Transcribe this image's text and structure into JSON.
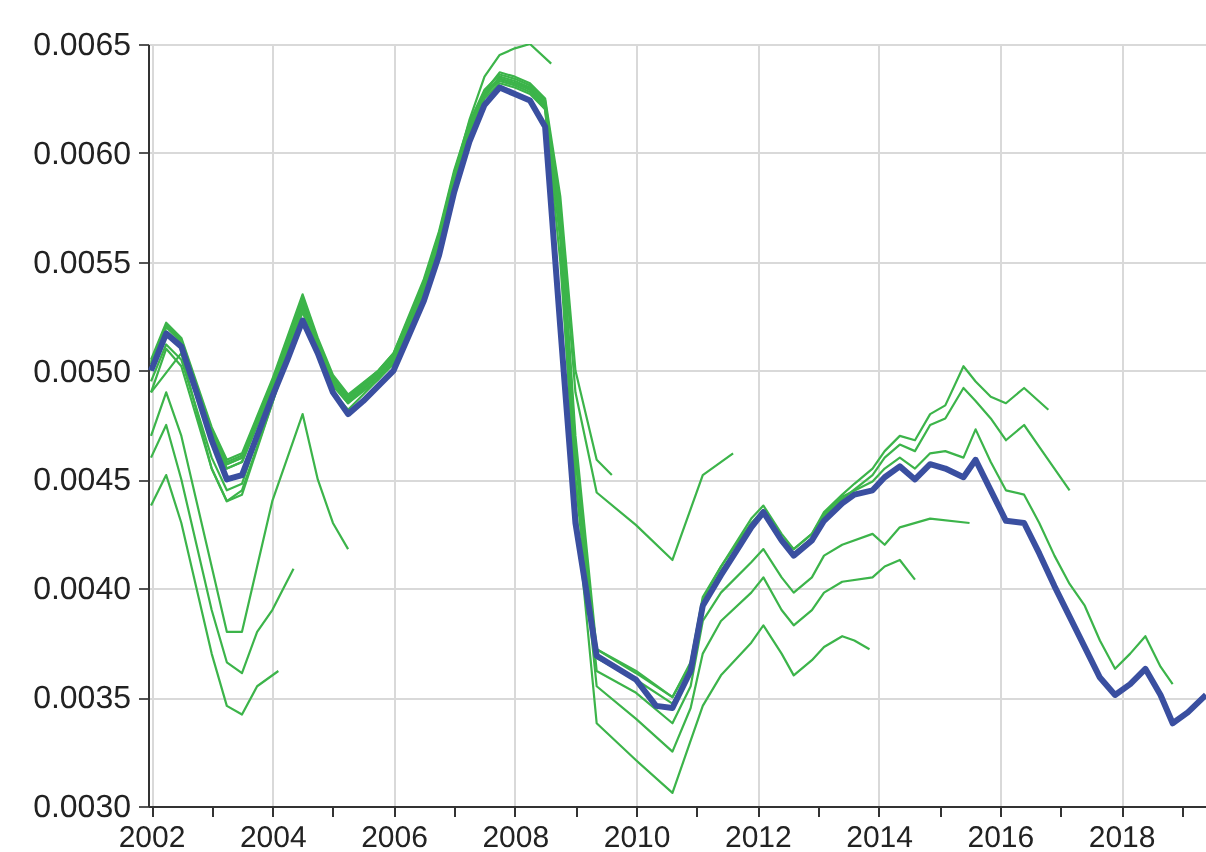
{
  "chart_data": {
    "type": "line",
    "xlim": [
      2001.95,
      2019.4
    ],
    "ylim": [
      0.003,
      0.0065
    ],
    "xticks": [
      2002,
      {
        "value": 2003,
        "label": null
      },
      2004,
      {
        "value": 2005,
        "label": null
      },
      2006,
      {
        "value": 2007,
        "label": null
      },
      2008,
      {
        "value": 2009,
        "label": null
      },
      2010,
      {
        "value": 2011,
        "label": null
      },
      2012,
      {
        "value": 2013,
        "label": null
      },
      2014,
      {
        "value": 2015,
        "label": null
      },
      2016,
      {
        "value": 2017,
        "label": null
      },
      2018,
      {
        "value": 2019,
        "label": null
      }
    ],
    "yticks": [
      {
        "value": 0.003,
        "label": "0.0030"
      },
      {
        "value": 0.0035,
        "label": "0.0035"
      },
      {
        "value": 0.004,
        "label": "0.0040"
      },
      {
        "value": 0.0045,
        "label": "0.0045"
      },
      {
        "value": 0.005,
        "label": "0.0050"
      },
      {
        "value": 0.0055,
        "label": "0.0055"
      },
      {
        "value": 0.006,
        "label": "0.0060"
      },
      {
        "value": 0.0065,
        "label": "0.0065"
      }
    ],
    "grid": true,
    "marker": "none",
    "line_style": "solid",
    "series": [
      {
        "color": "#3cb44a",
        "x": [
          2002,
          2002.25,
          2002.5,
          2002.75,
          2003,
          2003.25,
          2003.5,
          2003.75,
          2004.1
        ],
        "values": [
          0.00438,
          0.00452,
          0.0043,
          0.004,
          0.0037,
          0.00346,
          0.00342,
          0.00355,
          0.00362
        ]
      },
      {
        "color": "#3cb44a",
        "x": [
          2002,
          2002.25,
          2002.5,
          2002.75,
          2003,
          2003.25,
          2003.5,
          2003.75,
          2004,
          2004.35
        ],
        "values": [
          0.0046,
          0.00475,
          0.0045,
          0.0042,
          0.0039,
          0.00366,
          0.00361,
          0.0038,
          0.0039,
          0.00409
        ]
      },
      {
        "color": "#3cb44a",
        "x": [
          2002,
          2002.25,
          2002.5,
          2002.75,
          2003,
          2003.25,
          2003.5,
          2003.75,
          2004,
          2004.25,
          2004.5,
          2004.75,
          2005,
          2005.25
        ],
        "values": [
          0.0047,
          0.0049,
          0.0047,
          0.0044,
          0.0041,
          0.0038,
          0.0038,
          0.0041,
          0.0044,
          0.0046,
          0.0048,
          0.0045,
          0.0043,
          0.00418
        ]
      },
      {
        "color": "#3cb44a",
        "x": [
          2002,
          2002.5,
          2003,
          2003.25,
          2003.5,
          2004,
          2004.5,
          2004.75,
          2005,
          2005.25,
          2005.75,
          2006,
          2006.5,
          2006.75,
          2007,
          2007.25,
          2007.5,
          2007.75,
          2008,
          2008.25,
          2008.6
        ],
        "values": [
          0.0049,
          0.00508,
          0.00455,
          0.0044,
          0.00445,
          0.00485,
          0.0053,
          0.00512,
          0.00495,
          0.00488,
          0.005,
          0.00508,
          0.0054,
          0.0056,
          0.0059,
          0.00615,
          0.00635,
          0.00645,
          0.00648,
          0.0065,
          0.00641
        ]
      },
      {
        "color": "#3cb44a",
        "x": [
          2002,
          2002.25,
          2002.5,
          2003,
          2003.25,
          2003.5,
          2004,
          2004.5,
          2004.75,
          2005,
          2005.25,
          2005.75,
          2006,
          2006.5,
          2006.75,
          2007,
          2007.25,
          2007.5,
          2007.75,
          2008,
          2008.25,
          2008.5,
          2008.75,
          2009,
          2009.35,
          2009.6
        ],
        "values": [
          0.00495,
          0.00512,
          0.00505,
          0.0046,
          0.00445,
          0.00448,
          0.0049,
          0.0053,
          0.0051,
          0.00493,
          0.00485,
          0.00498,
          0.00505,
          0.00537,
          0.00557,
          0.00585,
          0.0061,
          0.00628,
          0.00637,
          0.00635,
          0.00632,
          0.00625,
          0.0058,
          0.005,
          0.00459,
          0.00452
        ]
      },
      {
        "color": "#3cb44a",
        "x": [
          2002,
          2002.25,
          2002.5,
          2003,
          2003.25,
          2003.5,
          2004,
          2004.5,
          2004.75,
          2005,
          2005.25,
          2005.75,
          2006,
          2006.5,
          2006.75,
          2007,
          2007.25,
          2007.5,
          2007.75,
          2008,
          2008.25,
          2008.5,
          2008.75,
          2009,
          2009.35,
          2010,
          2010.6,
          2011.1,
          2011.6
        ],
        "values": [
          0.0049,
          0.0051,
          0.00502,
          0.00455,
          0.0044,
          0.00443,
          0.00485,
          0.00527,
          0.00508,
          0.0049,
          0.00482,
          0.00496,
          0.00503,
          0.00535,
          0.00555,
          0.00583,
          0.00608,
          0.00626,
          0.00635,
          0.00633,
          0.0063,
          0.00622,
          0.00575,
          0.0049,
          0.00444,
          0.00429,
          0.00413,
          0.00452,
          0.00462
        ]
      },
      {
        "color": "#3cb44a",
        "x": [
          2002,
          2002.25,
          2002.5,
          2003,
          2003.25,
          2003.5,
          2004,
          2004.5,
          2004.75,
          2005,
          2005.25,
          2005.75,
          2006,
          2006.5,
          2006.75,
          2007,
          2007.25,
          2007.5,
          2007.75,
          2008,
          2008.25,
          2008.5,
          2008.75,
          2009,
          2009.35,
          2010,
          2010.6,
          2010.9,
          2011.1,
          2011.4,
          2011.9,
          2012.1,
          2012.4,
          2012.6,
          2012.9,
          2013.1,
          2013.4,
          2013.6,
          2013.85
        ],
        "values": [
          0.005,
          0.00518,
          0.00512,
          0.0047,
          0.00455,
          0.00458,
          0.00492,
          0.0053,
          0.00512,
          0.00495,
          0.00486,
          0.00497,
          0.00505,
          0.00538,
          0.0056,
          0.00588,
          0.0061,
          0.00625,
          0.00632,
          0.0063,
          0.00627,
          0.0062,
          0.0056,
          0.0044,
          0.00338,
          0.00321,
          0.00306,
          0.0033,
          0.00346,
          0.0036,
          0.00375,
          0.00383,
          0.0037,
          0.0036,
          0.00367,
          0.00373,
          0.00378,
          0.00376,
          0.00372
        ]
      },
      {
        "color": "#3cb44a",
        "x": [
          2002,
          2002.25,
          2002.5,
          2003,
          2003.25,
          2003.5,
          2004,
          2004.5,
          2004.75,
          2005,
          2005.25,
          2005.75,
          2006,
          2006.5,
          2006.75,
          2007,
          2007.25,
          2007.5,
          2007.75,
          2008,
          2008.25,
          2008.5,
          2008.75,
          2009,
          2009.35,
          2010,
          2010.6,
          2010.9,
          2011.1,
          2011.4,
          2011.9,
          2012.1,
          2012.4,
          2012.6,
          2012.9,
          2013.1,
          2013.4,
          2013.9,
          2014.1,
          2014.35,
          2014.6
        ],
        "values": [
          0.00502,
          0.0052,
          0.00513,
          0.00472,
          0.00457,
          0.0046,
          0.00494,
          0.00532,
          0.00513,
          0.00496,
          0.00487,
          0.00498,
          0.00506,
          0.0054,
          0.00562,
          0.0059,
          0.00612,
          0.00627,
          0.00633,
          0.00631,
          0.00628,
          0.00621,
          0.00565,
          0.0045,
          0.00355,
          0.0034,
          0.00325,
          0.00345,
          0.0037,
          0.00385,
          0.00398,
          0.00405,
          0.0039,
          0.00383,
          0.0039,
          0.00398,
          0.00403,
          0.00405,
          0.0041,
          0.00413,
          0.00404
        ]
      },
      {
        "color": "#3cb44a",
        "x": [
          2002,
          2002.25,
          2002.5,
          2003,
          2003.25,
          2003.5,
          2004,
          2004.5,
          2004.75,
          2005,
          2005.25,
          2005.75,
          2006,
          2006.5,
          2006.75,
          2007,
          2007.25,
          2007.5,
          2007.75,
          2008,
          2008.25,
          2008.5,
          2008.75,
          2009,
          2009.35,
          2010,
          2010.6,
          2010.9,
          2011.1,
          2011.4,
          2011.9,
          2012.1,
          2012.4,
          2012.6,
          2012.9,
          2013.1,
          2013.4,
          2013.9,
          2014.1,
          2014.35,
          2014.85,
          2015.5
        ],
        "values": [
          0.00503,
          0.00521,
          0.00514,
          0.00473,
          0.00458,
          0.00461,
          0.00495,
          0.00533,
          0.00514,
          0.00497,
          0.00488,
          0.00499,
          0.00507,
          0.00541,
          0.00563,
          0.00591,
          0.00613,
          0.00628,
          0.00634,
          0.00632,
          0.00629,
          0.00622,
          0.0057,
          0.0046,
          0.00362,
          0.00352,
          0.00338,
          0.00355,
          0.00385,
          0.00398,
          0.00412,
          0.00418,
          0.00405,
          0.00398,
          0.00405,
          0.00415,
          0.0042,
          0.00425,
          0.0042,
          0.00428,
          0.00432,
          0.0043
        ]
      },
      {
        "color": "#3cb44a",
        "x": [
          2002,
          2002.25,
          2002.5,
          2003,
          2003.25,
          2003.5,
          2004,
          2004.5,
          2004.75,
          2005,
          2005.25,
          2005.75,
          2006,
          2006.5,
          2006.75,
          2007,
          2007.25,
          2007.5,
          2007.75,
          2008,
          2008.25,
          2008.5,
          2008.75,
          2009,
          2009.35,
          2010,
          2010.6,
          2010.9,
          2011.1,
          2011.4,
          2011.9,
          2012.1,
          2012.4,
          2012.6,
          2012.9,
          2013.1,
          2013.4,
          2013.6,
          2013.9,
          2014.1,
          2014.35,
          2014.6,
          2014.85,
          2015.1,
          2015.4,
          2015.6,
          2015.85,
          2016.1,
          2016.4,
          2016.8
        ],
        "values": [
          0.00505,
          0.00522,
          0.00515,
          0.00474,
          0.00459,
          0.00462,
          0.00496,
          0.00535,
          0.00515,
          0.00498,
          0.00489,
          0.005,
          0.00508,
          0.00542,
          0.00564,
          0.00592,
          0.00614,
          0.00629,
          0.00636,
          0.00634,
          0.00631,
          0.00624,
          0.00575,
          0.0047,
          0.00372,
          0.00361,
          0.0035,
          0.00365,
          0.00395,
          0.0041,
          0.0043,
          0.00436,
          0.00423,
          0.00418,
          0.00425,
          0.00435,
          0.00443,
          0.00448,
          0.00455,
          0.00463,
          0.0047,
          0.00468,
          0.0048,
          0.00484,
          0.00502,
          0.00495,
          0.00488,
          0.00485,
          0.00492,
          0.00482
        ]
      },
      {
        "color": "#3cb44a",
        "x": [
          2002,
          2002.25,
          2002.5,
          2003,
          2003.25,
          2003.5,
          2004,
          2004.5,
          2004.75,
          2005,
          2005.25,
          2005.75,
          2006,
          2006.5,
          2006.75,
          2007,
          2007.25,
          2007.5,
          2007.75,
          2008,
          2008.25,
          2008.5,
          2008.75,
          2009,
          2009.35,
          2010,
          2010.6,
          2010.9,
          2011.1,
          2011.4,
          2011.9,
          2012.1,
          2012.4,
          2012.6,
          2012.9,
          2013.1,
          2013.4,
          2013.9,
          2014.1,
          2014.35,
          2014.6,
          2014.85,
          2015.1,
          2015.4,
          2015.6,
          2015.85,
          2016.1,
          2016.4,
          2016.65,
          2016.9,
          2017.15
        ],
        "values": [
          0.00504,
          0.00521,
          0.00514,
          0.00472,
          0.00457,
          0.0046,
          0.00494,
          0.00533,
          0.00514,
          0.00496,
          0.00487,
          0.00498,
          0.00506,
          0.0054,
          0.00562,
          0.0059,
          0.00612,
          0.00628,
          0.00634,
          0.00632,
          0.0063,
          0.00623,
          0.00572,
          0.00465,
          0.00368,
          0.00358,
          0.00347,
          0.00363,
          0.00393,
          0.00408,
          0.00428,
          0.00434,
          0.00421,
          0.00416,
          0.00423,
          0.00433,
          0.00441,
          0.00452,
          0.0046,
          0.00466,
          0.00463,
          0.00475,
          0.00478,
          0.00492,
          0.00486,
          0.00478,
          0.00468,
          0.00475,
          0.00465,
          0.00455,
          0.00445
        ]
      },
      {
        "color": "#3cb44a",
        "x": [
          2002,
          2002.25,
          2002.5,
          2003,
          2003.25,
          2003.5,
          2004,
          2004.5,
          2004.75,
          2005,
          2005.25,
          2005.75,
          2006,
          2006.5,
          2006.75,
          2007,
          2007.25,
          2007.5,
          2007.75,
          2008,
          2008.25,
          2008.5,
          2008.75,
          2009,
          2009.35,
          2010,
          2010.6,
          2010.9,
          2011.1,
          2011.4,
          2011.9,
          2012.1,
          2012.4,
          2012.6,
          2012.9,
          2013.1,
          2013.4,
          2013.9,
          2014.1,
          2014.35,
          2014.6,
          2014.85,
          2015.1,
          2015.4,
          2015.6,
          2015.85,
          2016.1,
          2016.4,
          2016.65,
          2016.9,
          2017.15,
          2017.4,
          2017.65,
          2017.9,
          2018.15,
          2018.4,
          2018.65,
          2018.85
        ],
        "values": [
          0.00503,
          0.0052,
          0.00514,
          0.00471,
          0.00455,
          0.00458,
          0.00492,
          0.00528,
          0.00512,
          0.00494,
          0.00485,
          0.00496,
          0.00504,
          0.00536,
          0.00557,
          0.00586,
          0.00608,
          0.00626,
          0.00634,
          0.00632,
          0.00629,
          0.0062,
          0.0055,
          0.0045,
          0.00372,
          0.00362,
          0.0035,
          0.00366,
          0.00396,
          0.0041,
          0.00432,
          0.00438,
          0.00425,
          0.00418,
          0.00425,
          0.00434,
          0.00442,
          0.00449,
          0.00455,
          0.0046,
          0.00455,
          0.00462,
          0.00463,
          0.0046,
          0.00473,
          0.00458,
          0.00445,
          0.00443,
          0.0043,
          0.00415,
          0.00402,
          0.00392,
          0.00376,
          0.00363,
          0.0037,
          0.00378,
          0.00364,
          0.00356
        ]
      },
      {
        "color": "#3a4fa0",
        "x": [
          2002,
          2002.25,
          2002.5,
          2002.75,
          2003,
          2003.25,
          2003.5,
          2003.75,
          2004,
          2004.25,
          2004.5,
          2004.75,
          2005,
          2005.25,
          2005.5,
          2005.75,
          2006,
          2006.25,
          2006.5,
          2006.75,
          2007,
          2007.25,
          2007.5,
          2007.75,
          2008,
          2008.25,
          2008.5,
          2008.75,
          2009,
          2009.35,
          2010,
          2010.33,
          2010.6,
          2010.9,
          2011.1,
          2011.4,
          2011.65,
          2011.9,
          2012.1,
          2012.4,
          2012.6,
          2012.9,
          2013.1,
          2013.4,
          2013.6,
          2013.9,
          2014.1,
          2014.35,
          2014.6,
          2014.85,
          2015.1,
          2015.4,
          2015.6,
          2015.85,
          2016.1,
          2016.4,
          2016.65,
          2016.9,
          2017.15,
          2017.4,
          2017.65,
          2017.9,
          2018.15,
          2018.4,
          2018.65,
          2018.85,
          2019.1,
          2019.4
        ],
        "values": [
          0.005,
          0.00517,
          0.00511,
          0.0049,
          0.00468,
          0.0045,
          0.00452,
          0.0047,
          0.00488,
          0.00505,
          0.00523,
          0.00508,
          0.0049,
          0.0048,
          0.00486,
          0.00493,
          0.005,
          0.00516,
          0.00532,
          0.00553,
          0.00582,
          0.00605,
          0.00622,
          0.0063,
          0.00627,
          0.00624,
          0.00612,
          0.0052,
          0.0043,
          0.00369,
          0.00358,
          0.00346,
          0.00345,
          0.00362,
          0.00392,
          0.00406,
          0.00417,
          0.00428,
          0.00435,
          0.00422,
          0.00415,
          0.00422,
          0.00431,
          0.00439,
          0.00443,
          0.00445,
          0.00451,
          0.00456,
          0.0045,
          0.00457,
          0.00455,
          0.00451,
          0.00459,
          0.00445,
          0.00431,
          0.0043,
          0.00416,
          0.00401,
          0.00387,
          0.00373,
          0.00359,
          0.00351,
          0.00356,
          0.00363,
          0.00351,
          0.00338,
          0.00343,
          0.00351
        ]
      }
    ]
  }
}
